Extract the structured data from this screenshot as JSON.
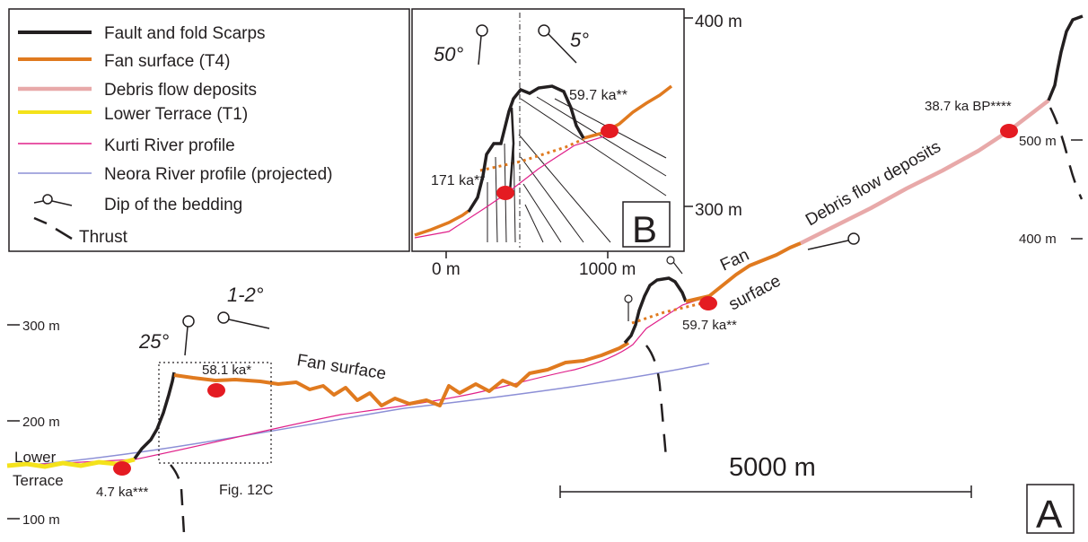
{
  "legend": {
    "items": [
      {
        "label": "Fault and fold Scarps",
        "color": "#231f20"
      },
      {
        "label": "Fan surface (T4)",
        "color": "#e07a1f"
      },
      {
        "label": "Debris flow deposits",
        "color": "#e8a9a9"
      },
      {
        "label": "Lower Terrace (T1)",
        "color": "#f4e21b"
      },
      {
        "label": "Kurti River profile",
        "color": "#e0218a"
      },
      {
        "label": "Neora River profile (projected)",
        "color": "#8c8fd6"
      },
      {
        "label": "Dip of the bedding",
        "color": "#231f20"
      },
      {
        "label": "Thrust",
        "color": "#231f20"
      }
    ]
  },
  "main_panel": {
    "panel_letter": "A",
    "left_axis_ticks": [
      "300 m",
      "200 m",
      "100 m"
    ],
    "right_axis_ticks": [
      "400 m",
      "500 m",
      "400 m"
    ],
    "dips": [
      "25°",
      "1-2°"
    ],
    "labels": {
      "lower_line1": "Lower",
      "lower_line2": "Terrace",
      "fan_surface": "Fan surface",
      "fan": "Fan",
      "surface": "surface",
      "debris": "Debris flow deposits",
      "fig_ref": "Fig. 12C"
    },
    "ages": [
      "4.7 ka***",
      "58.1 ka*",
      "59.7 ka**",
      "38.7 ka BP****"
    ],
    "scale_bar": "5000 m"
  },
  "inset_panel": {
    "panel_letter": "B",
    "dips": [
      "50°",
      "5°"
    ],
    "ages": [
      "59.7 ka**",
      "171 ka**"
    ],
    "x_ticks": [
      "0 m",
      "1000 m"
    ],
    "y_ticks": [
      "400 m",
      "300 m"
    ]
  }
}
